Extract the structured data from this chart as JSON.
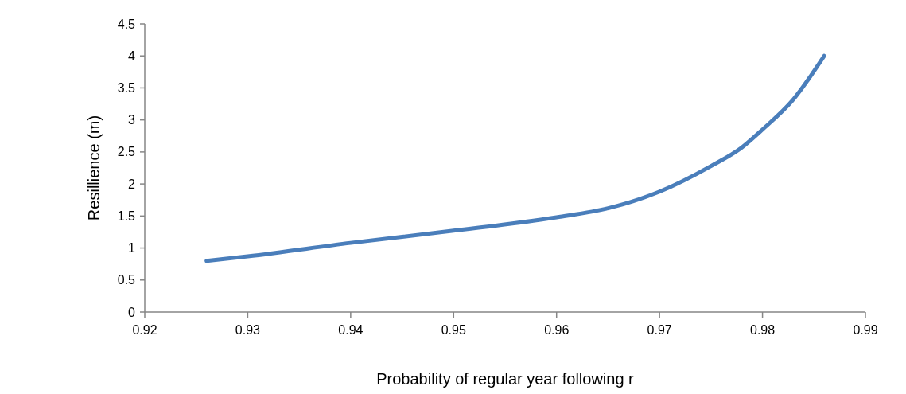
{
  "chart_data": {
    "type": "line",
    "xlabel": "Probability of regular year following r",
    "ylabel": "Resillience (m)",
    "x": [
      0.926,
      0.93,
      0.94,
      0.95,
      0.96,
      0.965,
      0.97,
      0.975,
      0.978,
      0.98,
      0.983,
      0.986
    ],
    "series": [
      {
        "color": "#4a7ebb",
        "values": [
          0.8,
          0.87,
          1.08,
          1.27,
          1.48,
          1.62,
          1.88,
          2.28,
          2.57,
          2.85,
          3.32,
          4.0
        ]
      }
    ],
    "xlim": [
      0.92,
      0.99
    ],
    "xticks": [
      0.92,
      0.93,
      0.94,
      0.95,
      0.96,
      0.97,
      0.98,
      0.99
    ],
    "ylim": [
      0,
      4.5
    ],
    "yticks": [
      0,
      0.5,
      1,
      1.5,
      2,
      2.5,
      3,
      3.5,
      4,
      4.5
    ],
    "grid": false,
    "marker": "none",
    "line_style": "solid"
  }
}
